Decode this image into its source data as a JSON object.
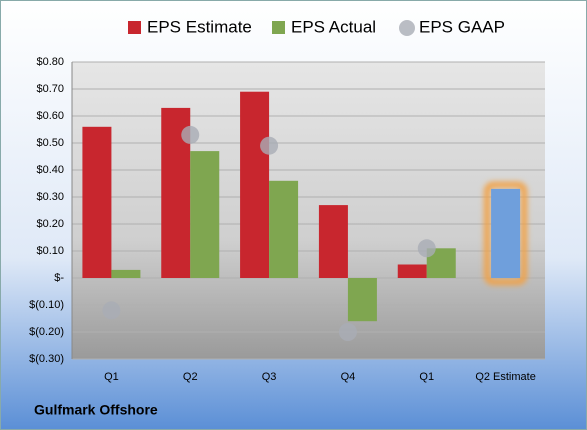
{
  "chart_data": {
    "type": "bar",
    "caption": "Gulfmark Offshore",
    "categories": [
      "Q1",
      "Q2",
      "Q3",
      "Q4",
      "Q1",
      "Q2 Estimate"
    ],
    "series": [
      {
        "name": "EPS Estimate",
        "color": "#c8262e",
        "values": [
          0.56,
          0.63,
          0.69,
          0.27,
          0.05,
          0.33
        ],
        "point_colors": [
          "#c8262e",
          "#c8262e",
          "#c8262e",
          "#c8262e",
          "#c8262e",
          "#6f9fdc"
        ]
      },
      {
        "name": "EPS Actual",
        "color": "#7fa650",
        "values": [
          0.03,
          0.47,
          0.36,
          -0.16,
          0.11,
          null
        ]
      },
      {
        "name": "EPS GAAP",
        "color": "#a9adb5",
        "marker": "circle",
        "values": [
          -0.12,
          0.53,
          0.49,
          -0.2,
          0.11,
          null
        ]
      }
    ],
    "ylim": [
      -0.3,
      0.8
    ],
    "yticks": [
      {
        "value": 0.8,
        "label": "$0.80"
      },
      {
        "value": 0.7,
        "label": "$0.70"
      },
      {
        "value": 0.6,
        "label": "$0.60"
      },
      {
        "value": 0.5,
        "label": "$0.50"
      },
      {
        "value": 0.4,
        "label": "$0.40"
      },
      {
        "value": 0.3,
        "label": "$0.30"
      },
      {
        "value": 0.2,
        "label": "$0.20"
      },
      {
        "value": 0.1,
        "label": "$0.10"
      },
      {
        "value": 0,
        "label": "$-"
      },
      {
        "value": -0.1,
        "label": "$(0.10)"
      },
      {
        "value": -0.2,
        "label": "$(0.20)"
      },
      {
        "value": -0.3,
        "label": "$(0.30)"
      }
    ],
    "grid": true
  }
}
